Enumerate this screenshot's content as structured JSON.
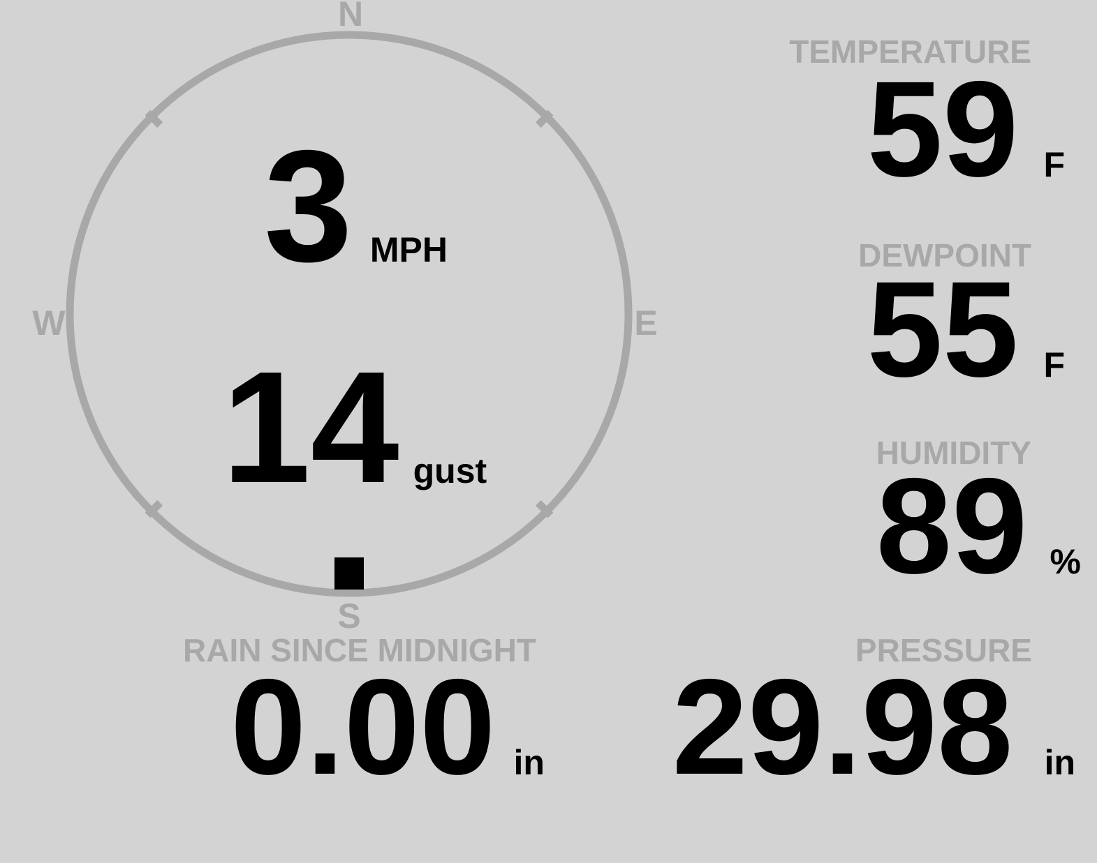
{
  "colors": {
    "background": "#d3d3d3",
    "muted": "#a8a8a8",
    "text": "#000000"
  },
  "compass": {
    "cardinals": {
      "n": "N",
      "e": "E",
      "s": "S",
      "w": "W"
    },
    "speed": {
      "value": "3",
      "unit": "MPH"
    },
    "gust": {
      "value": "14",
      "unit": "gust"
    },
    "direction_deg": 180
  },
  "stats": {
    "temperature": {
      "label": "TEMPERATURE",
      "value": "59",
      "unit": "F"
    },
    "dewpoint": {
      "label": "DEWPOINT",
      "value": "55",
      "unit": "F"
    },
    "humidity": {
      "label": "HUMIDITY",
      "value": "89",
      "unit": "%"
    },
    "rain": {
      "label": "RAIN SINCE MIDNIGHT",
      "value": "0.00",
      "unit": "in"
    },
    "pressure": {
      "label": "PRESSURE",
      "value": "29.98",
      "unit": "in"
    }
  }
}
